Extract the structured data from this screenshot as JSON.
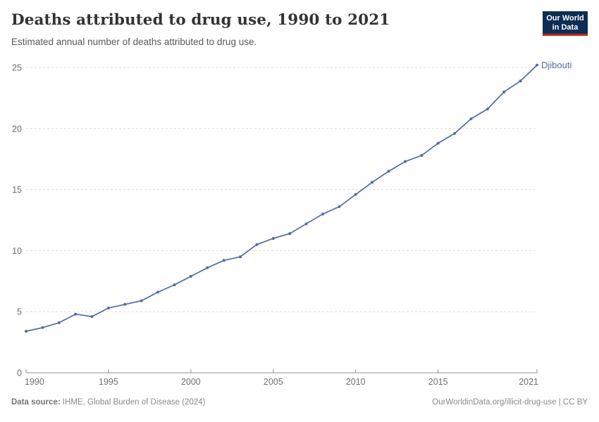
{
  "header": {
    "title": "Deaths attributed to drug use, 1990 to 2021",
    "subtitle": "Estimated annual number of deaths attributed to drug use.",
    "logo": {
      "line1": "Our World",
      "line2": "in Data"
    }
  },
  "chart_data": {
    "type": "line",
    "title": "Deaths attributed to drug use, 1990 to 2021",
    "xlabel": "",
    "ylabel": "",
    "x": [
      1990,
      1991,
      1992,
      1993,
      1994,
      1995,
      1996,
      1997,
      1998,
      1999,
      2000,
      2001,
      2002,
      2003,
      2004,
      2005,
      2006,
      2007,
      2008,
      2009,
      2010,
      2011,
      2012,
      2013,
      2014,
      2015,
      2016,
      2017,
      2018,
      2019,
      2020,
      2021
    ],
    "series": [
      {
        "name": "Djibouti",
        "color": "#4c6ea5",
        "values": [
          3.4,
          3.7,
          4.1,
          4.8,
          4.6,
          5.3,
          5.6,
          5.9,
          6.6,
          7.2,
          7.9,
          8.6,
          9.2,
          9.5,
          10.5,
          11.0,
          11.4,
          12.2,
          13.0,
          13.6,
          14.6,
          15.6,
          16.5,
          17.3,
          17.8,
          18.8,
          19.6,
          20.8,
          21.6,
          23.0,
          23.9,
          25.2
        ]
      }
    ],
    "xlim": [
      1990,
      2021
    ],
    "ylim": [
      0,
      25
    ],
    "yticks": [
      0,
      5,
      10,
      15,
      20,
      25
    ],
    "xticks": [
      1990,
      1995,
      2000,
      2005,
      2010,
      2015,
      2021
    ],
    "grid": true,
    "legend_position": "end-of-line"
  },
  "footer": {
    "datasource_label": "Data source:",
    "datasource_value": " IHME, Global Burden of Disease (2024)",
    "rights": "OurWorldinData.org/illicit-drug-use | CC BY"
  },
  "colors": {
    "line": "#4c6ea5",
    "grid": "#dedede",
    "axis": "#8f8f8f",
    "tick_text": "#6e6e6e",
    "logo_bg": "#0d2e52",
    "logo_bar": "#c2281c"
  }
}
